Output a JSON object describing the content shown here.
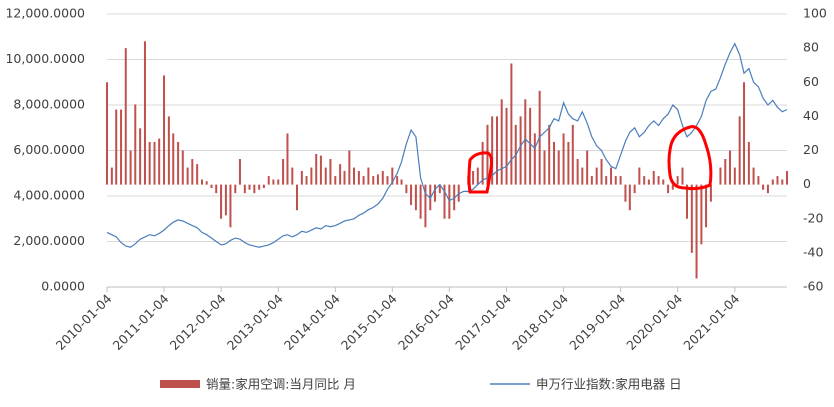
{
  "chart_data": {
    "type": "bar-line",
    "x": [
      "2010-01-04",
      "2010-02-04",
      "2010-03-04",
      "2010-04-04",
      "2010-05-04",
      "2010-06-04",
      "2010-07-04",
      "2010-08-04",
      "2010-09-04",
      "2010-10-04",
      "2010-11-04",
      "2010-12-04",
      "2011-01-04",
      "2011-02-04",
      "2011-03-04",
      "2011-04-04",
      "2011-05-04",
      "2011-06-04",
      "2011-07-04",
      "2011-08-04",
      "2011-09-04",
      "2011-10-04",
      "2011-11-04",
      "2011-12-04",
      "2012-01-04",
      "2012-02-04",
      "2012-03-04",
      "2012-04-04",
      "2012-05-04",
      "2012-06-04",
      "2012-07-04",
      "2012-08-04",
      "2012-09-04",
      "2012-10-04",
      "2012-11-04",
      "2012-12-04",
      "2013-01-04",
      "2013-02-04",
      "2013-03-04",
      "2013-04-04",
      "2013-05-04",
      "2013-06-04",
      "2013-07-04",
      "2013-08-04",
      "2013-09-04",
      "2013-10-04",
      "2013-11-04",
      "2013-12-04",
      "2014-01-04",
      "2014-02-04",
      "2014-03-04",
      "2014-04-04",
      "2014-05-04",
      "2014-06-04",
      "2014-07-04",
      "2014-08-04",
      "2014-09-04",
      "2014-10-04",
      "2014-11-04",
      "2014-12-04",
      "2015-01-04",
      "2015-02-04",
      "2015-03-04",
      "2015-04-04",
      "2015-05-04",
      "2015-06-04",
      "2015-07-04",
      "2015-08-04",
      "2015-09-04",
      "2015-10-04",
      "2015-11-04",
      "2015-12-04",
      "2016-01-04",
      "2016-02-04",
      "2016-03-04",
      "2016-04-04",
      "2016-05-04",
      "2016-06-04",
      "2016-07-04",
      "2016-08-04",
      "2016-09-04",
      "2016-10-04",
      "2016-11-04",
      "2016-12-04",
      "2017-01-04",
      "2017-02-04",
      "2017-03-04",
      "2017-04-04",
      "2017-05-04",
      "2017-06-04",
      "2017-07-04",
      "2017-08-04",
      "2017-09-04",
      "2017-10-04",
      "2017-11-04",
      "2017-12-04",
      "2018-01-04",
      "2018-02-04",
      "2018-03-04",
      "2018-04-04",
      "2018-05-04",
      "2018-06-04",
      "2018-07-04",
      "2018-08-04",
      "2018-09-04",
      "2018-10-04",
      "2018-11-04",
      "2018-12-04",
      "2019-01-04",
      "2019-02-04",
      "2019-03-04",
      "2019-04-04",
      "2019-05-04",
      "2019-06-04",
      "2019-07-04",
      "2019-08-04",
      "2019-09-04",
      "2019-10-04",
      "2019-11-04",
      "2019-12-04",
      "2020-01-04",
      "2020-02-04",
      "2020-03-04",
      "2020-04-04",
      "2020-05-04",
      "2020-06-04",
      "2020-07-04",
      "2020-08-04",
      "2020-09-04",
      "2020-10-04",
      "2020-11-04",
      "2020-12-04",
      "2021-01-04",
      "2021-02-04",
      "2021-03-04",
      "2021-04-04",
      "2021-05-04",
      "2021-06-04",
      "2021-07-04",
      "2021-08-04",
      "2021-09-04",
      "2021-10-04",
      "2021-11-04",
      "2021-12-04"
    ],
    "series": [
      {
        "name": "销量:家用空调:当月同比 月",
        "color": "#c0504d",
        "axis": "y2",
        "kind": "bar",
        "values": [
          60,
          10,
          44,
          44,
          80,
          20,
          47,
          33,
          84,
          25,
          25,
          27,
          64,
          40,
          30,
          25,
          20,
          10,
          15,
          12,
          3,
          2,
          -2,
          -5,
          -20,
          -18,
          -25,
          -5,
          15,
          -5,
          -3,
          -5,
          -3,
          -2,
          5,
          3,
          3,
          15,
          30,
          10,
          -15,
          8,
          5,
          10,
          18,
          17,
          10,
          15,
          5,
          12,
          8,
          20,
          10,
          8,
          5,
          10,
          5,
          6,
          8,
          5,
          10,
          5,
          3,
          -5,
          -12,
          -15,
          -20,
          -25,
          -15,
          -10,
          -5,
          -20,
          -20,
          -15,
          -10,
          0,
          5,
          8,
          10,
          25,
          35,
          40,
          40,
          50,
          45,
          71,
          35,
          40,
          50,
          45,
          30,
          55,
          20,
          35,
          25,
          20,
          30,
          25,
          35,
          15,
          10,
          20,
          5,
          10,
          15,
          5,
          10,
          5,
          5,
          -10,
          -15,
          -5,
          10,
          5,
          3,
          8,
          5,
          3,
          -5,
          -3,
          5,
          10,
          -20,
          -40,
          -55,
          -35,
          -25,
          -10,
          0,
          10,
          15,
          20,
          10,
          40,
          60,
          25,
          10,
          5,
          -3,
          -5,
          3,
          5,
          3,
          8
        ]
      },
      {
        "name": "申万行业指数:家用电器 日",
        "color": "#4a7ebb",
        "kind": "line",
        "values": [
          2400,
          2300,
          2200,
          1950,
          1800,
          1750,
          1900,
          2100,
          2200,
          2300,
          2250,
          2350,
          2500,
          2700,
          2850,
          2950,
          2900,
          2800,
          2700,
          2600,
          2400,
          2300,
          2150,
          2000,
          1850,
          1900,
          2050,
          2150,
          2100,
          1950,
          1850,
          1800,
          1750,
          1800,
          1850,
          1950,
          2100,
          2250,
          2300,
          2200,
          2300,
          2450,
          2400,
          2500,
          2600,
          2550,
          2700,
          2650,
          2700,
          2800,
          2900,
          2950,
          3000,
          3150,
          3250,
          3400,
          3500,
          3650,
          3900,
          4300,
          4600,
          5000,
          5500,
          6300,
          6900,
          6600,
          4800,
          4100,
          3900,
          4300,
          4500,
          4200,
          3800,
          3900,
          4100,
          4200,
          4200,
          4300,
          4500,
          4700,
          4800,
          4900,
          5100,
          5200,
          5300,
          5600,
          5800,
          6200,
          6500,
          6300,
          6100,
          6600,
          6800,
          7000,
          7400,
          7300,
          8100,
          7600,
          7400,
          7300,
          7700,
          7200,
          6600,
          6200,
          6000,
          5600,
          5300,
          5200,
          5800,
          6400,
          6800,
          7000,
          6600,
          6800,
          7100,
          7300,
          7100,
          7400,
          7600,
          8000,
          7800,
          7100,
          6600,
          6800,
          7100,
          7500,
          8200,
          8600,
          8700,
          9200,
          9800,
          10300,
          10700,
          10200,
          9400,
          9600,
          9000,
          8800,
          8300,
          8000,
          8200,
          7900,
          7700,
          7800
        ]
      }
    ],
    "xlim": [
      "2010-01-04",
      "2021-12-04"
    ],
    "xticks": [
      "2010-01-04",
      "2011-01-04",
      "2012-01-04",
      "2013-01-04",
      "2014-01-04",
      "2015-01-04",
      "2016-01-04",
      "2017-01-04",
      "2018-01-04",
      "2019-01-04",
      "2020-01-04",
      "2021-01-04"
    ],
    "ylim": [
      0,
      12000
    ],
    "yticks": [
      {
        "value": 0,
        "label": "0.0000"
      },
      {
        "value": 2000,
        "label": "2,000.0000"
      },
      {
        "value": 4000,
        "label": "4,000.0000"
      },
      {
        "value": 6000,
        "label": "6,000.0000"
      },
      {
        "value": 8000,
        "label": "8,000.0000"
      },
      {
        "value": 10000,
        "label": "10,000.0000"
      },
      {
        "value": 12000,
        "label": "12,000.0000"
      }
    ],
    "y2lim": [
      -60,
      100
    ],
    "y2ticks": [
      -60,
      -40,
      -20,
      0,
      20,
      40,
      60,
      80,
      100
    ],
    "grid": true
  }
}
